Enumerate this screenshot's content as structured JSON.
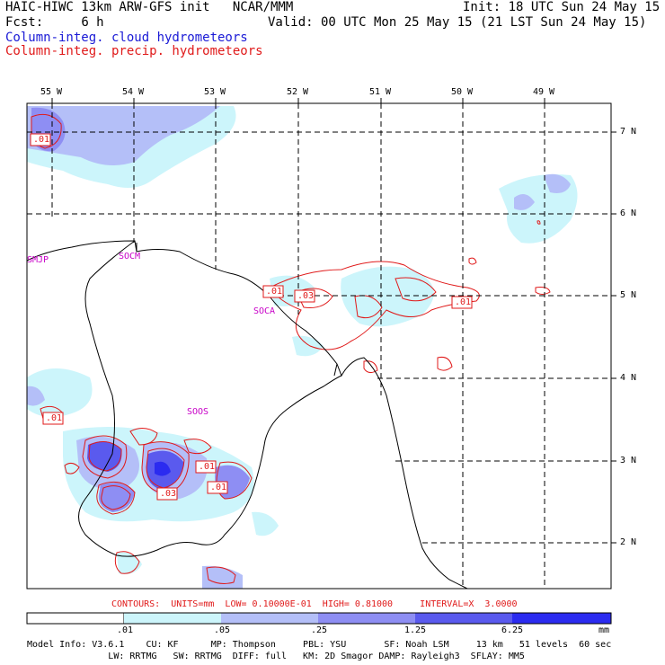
{
  "header": {
    "title_left": "HAIC-HIWC 13km ARW-GFS init   NCAR/MMM",
    "fcst_label": "Fcst:",
    "fcst_value": "6 h",
    "init": "Init: 18 UTC Sun 24 May 15",
    "valid": "Valid: 00 UTC Mon 25 May 15 (21 LST Sun 24 May 15)",
    "field1": "Column-integ. cloud hydrometeors",
    "field2": "Column-integ. precip. hydrometeors",
    "field1_color": "#1a1ad6",
    "field2_color": "#e01a1a"
  },
  "map": {
    "lon_labels": [
      "55 W",
      "54 W",
      "53 W",
      "52 W",
      "51 W",
      "50 W",
      "49 W"
    ],
    "lat_labels": [
      "7 N",
      "6 N",
      "5 N",
      "4 N",
      "3 N",
      "2 N"
    ],
    "stations": [
      "SMJP",
      "SOCM",
      "SOCA",
      "SOOS"
    ],
    "contour_labels": [
      ".01",
      ".01",
      ".03",
      ".01",
      ".01",
      ".01",
      ".01",
      ".03"
    ]
  },
  "contours_line": "CONTOURS:  UNITS=mm  LOW= 0.10000E-01  HIGH= 0.81000     INTERVAL=X  3.0000",
  "colorbar": {
    "ticks": [
      ".01",
      ".05",
      ".25",
      "1.25",
      "6.25"
    ],
    "unit": "mm",
    "colors": [
      "#ffffff",
      "#ccf5fb",
      "#b4bff8",
      "#8e8ef3",
      "#5a5aee",
      "#2b2bf0"
    ]
  },
  "footer": {
    "line1": "Model Info: V3.6.1    CU: KF      MP: Thompson     PBL: YSU       SF: Noah LSM     13 km   51 levels  60 sec",
    "line2": "               LW: RRTMG   SW: RRTMG  DIFF: full   KM: 2D Smagor DAMP: Rayleigh3  SFLAY: MM5"
  }
}
